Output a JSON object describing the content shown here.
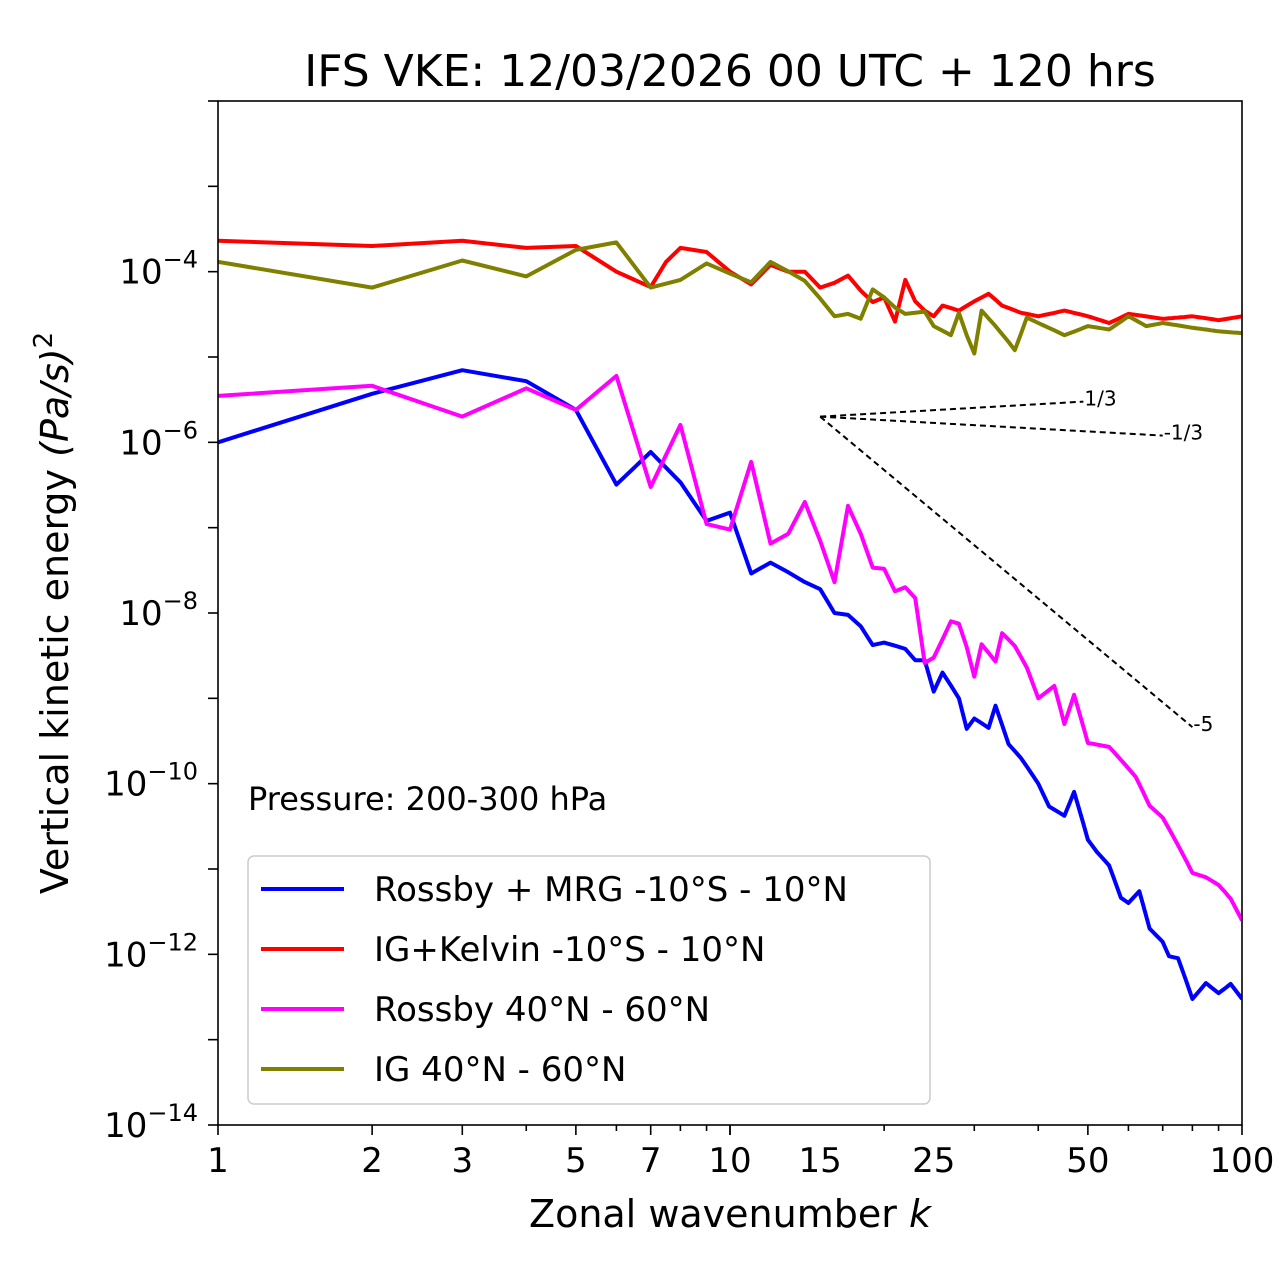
{
  "chart_data": {
    "type": "line",
    "title": "IFS VKE: 12/03/2026 00 UTC + 120 hrs",
    "xlabel": "Zonal wavenumber",
    "xlabel_var": "k",
    "ylabel": "Vertical kinetic energy",
    "ylabel_unit": "(Pa/s)",
    "ylabel_exp": "2",
    "xscale": "log",
    "yscale": "log",
    "xlim": [
      1,
      100
    ],
    "ylim": [
      1e-14,
      0.01
    ],
    "xticks": [
      1,
      2,
      3,
      5,
      7,
      10,
      15,
      25,
      50,
      100
    ],
    "xtick_labels": [
      "1",
      "2",
      "3",
      "5",
      "7",
      "10",
      "15",
      "25",
      "50",
      "100"
    ],
    "yticks": [
      {
        "value": 0.0001,
        "base": "10",
        "exp": "−4"
      },
      {
        "value": 1e-06,
        "base": "10",
        "exp": "−6"
      },
      {
        "value": 1e-08,
        "base": "10",
        "exp": "−8"
      },
      {
        "value": 1e-10,
        "base": "10",
        "exp": "−10"
      },
      {
        "value": 1e-12,
        "base": "10",
        "exp": "−12"
      },
      {
        "value": 1e-14,
        "base": "10",
        "exp": "−14"
      }
    ],
    "annotation": "Pressure: 200-300 hPa",
    "legend_position": "lower-left",
    "series": [
      {
        "name": "Rossby + MRG -10°S - 10°N",
        "color": "#0000ff",
        "anchors": [
          [
            1,
            1e-06
          ],
          [
            2,
            3.7e-06
          ],
          [
            3,
            7e-06
          ],
          [
            4,
            5.2e-06
          ],
          [
            5,
            2.4e-06
          ],
          [
            6,
            3.2e-07
          ],
          [
            7,
            7.7e-07
          ],
          [
            8,
            3.4e-07
          ],
          [
            9,
            1.2e-07
          ],
          [
            10,
            1.5e-07
          ],
          [
            11,
            2.9e-08
          ],
          [
            12,
            3.9e-08
          ],
          [
            14,
            2.3e-08
          ],
          [
            15,
            1.9e-08
          ],
          [
            16,
            1e-08
          ],
          [
            17,
            9.5e-09
          ],
          [
            18,
            7e-09
          ],
          [
            19,
            4.2e-09
          ],
          [
            20,
            4.5e-09
          ],
          [
            22,
            3.8e-09
          ],
          [
            23,
            2.8e-09
          ],
          [
            24,
            2.8e-09
          ],
          [
            25,
            1.2e-09
          ],
          [
            26,
            2e-09
          ],
          [
            28,
            1e-09
          ],
          [
            29,
            4.4e-10
          ],
          [
            30,
            5.8e-10
          ],
          [
            32,
            4.5e-10
          ],
          [
            33,
            8.2e-10
          ],
          [
            35,
            2.9e-10
          ],
          [
            37,
            2e-10
          ],
          [
            40,
            1e-10
          ],
          [
            42,
            5.4e-11
          ],
          [
            45,
            4.2e-11
          ],
          [
            47,
            8e-11
          ],
          [
            50,
            2.2e-11
          ],
          [
            52,
            1.6e-11
          ],
          [
            55,
            1.1e-11
          ],
          [
            58,
            4.6e-12
          ],
          [
            60,
            4e-12
          ],
          [
            63,
            5.5e-12
          ],
          [
            66,
            2e-12
          ],
          [
            70,
            1.4e-12
          ],
          [
            72,
            9.5e-13
          ],
          [
            75,
            9e-13
          ],
          [
            80,
            3e-13
          ],
          [
            85,
            4.6e-13
          ],
          [
            90,
            3.5e-13
          ],
          [
            95,
            4.5e-13
          ],
          [
            100,
            3e-13
          ]
        ]
      },
      {
        "name": "IG+Kelvin -10°S - 10°N",
        "color": "#ff0000",
        "anchors": [
          [
            1,
            0.00023
          ],
          [
            2,
            0.0002
          ],
          [
            3,
            0.00023
          ],
          [
            4,
            0.00019
          ],
          [
            5,
            0.0002
          ],
          [
            6,
            0.0001
          ],
          [
            7,
            6.6e-05
          ],
          [
            7.5,
            0.00013
          ],
          [
            8,
            0.00019
          ],
          [
            9,
            0.00017
          ],
          [
            10,
            0.0001
          ],
          [
            11,
            7.1e-05
          ],
          [
            12,
            0.00012
          ],
          [
            13,
            0.0001
          ],
          [
            14,
            0.0001
          ],
          [
            15,
            6.5e-05
          ],
          [
            16,
            7.4e-05
          ],
          [
            17,
            9e-05
          ],
          [
            18,
            6e-05
          ],
          [
            19,
            4.4e-05
          ],
          [
            20,
            5e-05
          ],
          [
            21,
            2.6e-05
          ],
          [
            22,
            8e-05
          ],
          [
            23,
            4.5e-05
          ],
          [
            24,
            3.5e-05
          ],
          [
            25,
            3e-05
          ],
          [
            26,
            4e-05
          ],
          [
            28,
            3.5e-05
          ],
          [
            30,
            4.5e-05
          ],
          [
            32,
            5.5e-05
          ],
          [
            34,
            4e-05
          ],
          [
            37,
            3.3e-05
          ],
          [
            40,
            3e-05
          ],
          [
            45,
            3.5e-05
          ],
          [
            50,
            3e-05
          ],
          [
            55,
            2.5e-05
          ],
          [
            60,
            3.2e-05
          ],
          [
            70,
            2.8e-05
          ],
          [
            80,
            3e-05
          ],
          [
            90,
            2.7e-05
          ],
          [
            100,
            3e-05
          ]
        ]
      },
      {
        "name": "Rossby 40°N - 60°N",
        "color": "#ff00ff",
        "anchors": [
          [
            1,
            3.5e-06
          ],
          [
            2,
            4.6e-06
          ],
          [
            3,
            2e-06
          ],
          [
            4,
            4.3e-06
          ],
          [
            5,
            2.4e-06
          ],
          [
            6,
            6e-06
          ],
          [
            7,
            3e-07
          ],
          [
            8,
            1.6e-06
          ],
          [
            9,
            1.1e-07
          ],
          [
            10,
            9.5e-08
          ],
          [
            11,
            5.9e-07
          ],
          [
            12,
            6.5e-08
          ],
          [
            13,
            8.5e-08
          ],
          [
            14,
            2e-07
          ],
          [
            15,
            7e-08
          ],
          [
            16,
            2.3e-08
          ],
          [
            17,
            1.8e-07
          ],
          [
            18,
            8.5e-08
          ],
          [
            19,
            3.4e-08
          ],
          [
            20,
            3.3e-08
          ],
          [
            21,
            1.8e-08
          ],
          [
            22,
            2e-08
          ],
          [
            23,
            1.5e-08
          ],
          [
            24,
            2.6e-09
          ],
          [
            25,
            3e-09
          ],
          [
            27,
            8e-09
          ],
          [
            28,
            7.5e-09
          ],
          [
            29,
            4e-09
          ],
          [
            30,
            1.8e-09
          ],
          [
            31,
            4.3e-09
          ],
          [
            33,
            2.7e-09
          ],
          [
            34,
            5.8e-09
          ],
          [
            36,
            4.1e-09
          ],
          [
            38,
            2.3e-09
          ],
          [
            40,
            1e-09
          ],
          [
            43,
            1.4e-09
          ],
          [
            45,
            5e-10
          ],
          [
            47,
            1.1e-09
          ],
          [
            50,
            3e-10
          ],
          [
            55,
            2.7e-10
          ],
          [
            58,
            1.9e-10
          ],
          [
            62,
            1.2e-10
          ],
          [
            66,
            5.5e-11
          ],
          [
            70,
            4e-11
          ],
          [
            75,
            1.9e-11
          ],
          [
            80,
            9e-12
          ],
          [
            85,
            8e-12
          ],
          [
            90,
            6.5e-12
          ],
          [
            95,
            4.5e-12
          ],
          [
            100,
            2.5e-12
          ]
        ]
      },
      {
        "name": "IG 40°N - 60°N",
        "color": "#808000",
        "anchors": [
          [
            1,
            0.00013
          ],
          [
            2,
            6.5e-05
          ],
          [
            3,
            0.000135
          ],
          [
            4,
            8.8e-05
          ],
          [
            5,
            0.00018
          ],
          [
            6,
            0.00022
          ],
          [
            7,
            6.5e-05
          ],
          [
            8,
            8e-05
          ],
          [
            9,
            0.000125
          ],
          [
            10,
            9.5e-05
          ],
          [
            11,
            7.5e-05
          ],
          [
            12,
            0.00013
          ],
          [
            14,
            7.8e-05
          ],
          [
            16,
            3e-05
          ],
          [
            17,
            3.2e-05
          ],
          [
            18,
            2.8e-05
          ],
          [
            19,
            6.2e-05
          ],
          [
            20,
            5e-05
          ],
          [
            21,
            3.8e-05
          ],
          [
            22,
            3.2e-05
          ],
          [
            24,
            3.4e-05
          ],
          [
            25,
            2.3e-05
          ],
          [
            27,
            1.8e-05
          ],
          [
            28,
            3.3e-05
          ],
          [
            29,
            1.8e-05
          ],
          [
            30,
            1.1e-05
          ],
          [
            31,
            3.5e-05
          ],
          [
            33,
            2.3e-05
          ],
          [
            35,
            1.5e-05
          ],
          [
            36,
            1.2e-05
          ],
          [
            38,
            2.9e-05
          ],
          [
            40,
            2.5e-05
          ],
          [
            45,
            1.8e-05
          ],
          [
            50,
            2.3e-05
          ],
          [
            55,
            2.1e-05
          ],
          [
            60,
            3e-05
          ],
          [
            65,
            2.3e-05
          ],
          [
            70,
            2.5e-05
          ],
          [
            80,
            2.2e-05
          ],
          [
            90,
            2e-05
          ],
          [
            100,
            1.9e-05
          ]
        ]
      }
    ],
    "reference_slopes": [
      {
        "label": "1/3",
        "slope": 0.3333,
        "from": [
          15,
          2e-06
        ],
        "to": [
          49,
          3e-06
        ]
      },
      {
        "label": "-1/3",
        "slope": -0.3333,
        "from": [
          15,
          2e-06
        ],
        "to": [
          70,
          1.2e-06
        ]
      },
      {
        "label": "-5",
        "slope": -5,
        "from": [
          15,
          2e-06
        ],
        "to": [
          80,
          4.6e-10
        ]
      }
    ]
  }
}
